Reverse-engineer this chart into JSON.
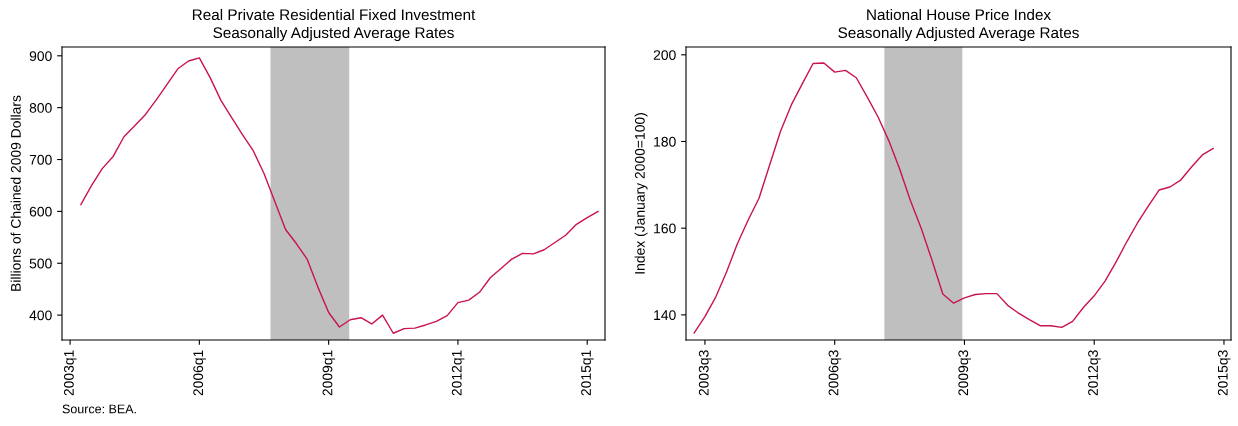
{
  "chart_data": [
    {
      "type": "line",
      "title": "Real Private Residential Fixed Investment",
      "subtitle": "Seasonally Adjusted Average Rates",
      "ylabel": "Billions of Chained 2009 Dollars",
      "annotations": [
        "Source: BEA."
      ],
      "categories": [
        "2003q1",
        null,
        null,
        null,
        null,
        null,
        null,
        null,
        null,
        null,
        null,
        null,
        "2006q1",
        null,
        null,
        null,
        null,
        null,
        null,
        null,
        null,
        null,
        null,
        null,
        "2009q1",
        null,
        null,
        null,
        null,
        null,
        null,
        null,
        null,
        null,
        null,
        null,
        "2012q1",
        null,
        null,
        null,
        null,
        null,
        null,
        null,
        null,
        null,
        null,
        null,
        "2015q1",
        null
      ],
      "series": [
        {
          "color": "#c8144b",
          "values": [
            null,
            613,
            650,
            683,
            706,
            744,
            765,
            787,
            815,
            845,
            875,
            890,
            896,
            858,
            814,
            781,
            748,
            717,
            673,
            619,
            565,
            538,
            508,
            454,
            405,
            377,
            391,
            395,
            383,
            400,
            365,
            374,
            375,
            381,
            388,
            399,
            424,
            429,
            444,
            472,
            490,
            508,
            519,
            518,
            526,
            540,
            554,
            575,
            588,
            600
          ]
        }
      ],
      "ylim": [
        352,
        917
      ],
      "yticks": [
        400,
        500,
        600,
        700,
        800,
        900
      ],
      "grid": false,
      "legend": false
    },
    {
      "type": "line",
      "title": "National House Price Index",
      "subtitle": "Seasonally Adjusted Average Rates",
      "ylabel": "Index (January 2000=100)",
      "categories": [
        null,
        "2003q3",
        null,
        null,
        null,
        null,
        null,
        null,
        null,
        null,
        null,
        null,
        null,
        "2006q3",
        null,
        null,
        null,
        null,
        null,
        null,
        null,
        null,
        null,
        null,
        null,
        "2009q3",
        null,
        null,
        null,
        null,
        null,
        null,
        null,
        null,
        null,
        null,
        null,
        "2012q3",
        null,
        null,
        null,
        null,
        null,
        null,
        null,
        null,
        null,
        null,
        null,
        "2015q3"
      ],
      "series": [
        {
          "color": "#c8144b",
          "values": [
            135.8,
            139.6,
            144.1,
            149.9,
            156.4,
            161.9,
            166.9,
            174.7,
            182.4,
            188.5,
            193.3,
            198.0,
            198.1,
            196.0,
            196.4,
            194.7,
            190.3,
            185.7,
            180.2,
            173.7,
            166.4,
            160.0,
            152.6,
            144.8,
            142.7,
            143.9,
            144.7,
            144.9,
            144.9,
            142.2,
            140.4,
            138.9,
            137.5,
            137.5,
            137.1,
            138.5,
            141.7,
            144.4,
            147.8,
            152.1,
            156.8,
            161.2,
            165.1,
            168.8,
            169.5,
            171.1,
            174.1,
            176.9,
            178.4,
            null
          ]
        }
      ],
      "ylim": [
        134.2,
        201.8
      ],
      "yticks": [
        140,
        160,
        180,
        200
      ],
      "grid": false,
      "legend": false
    }
  ]
}
